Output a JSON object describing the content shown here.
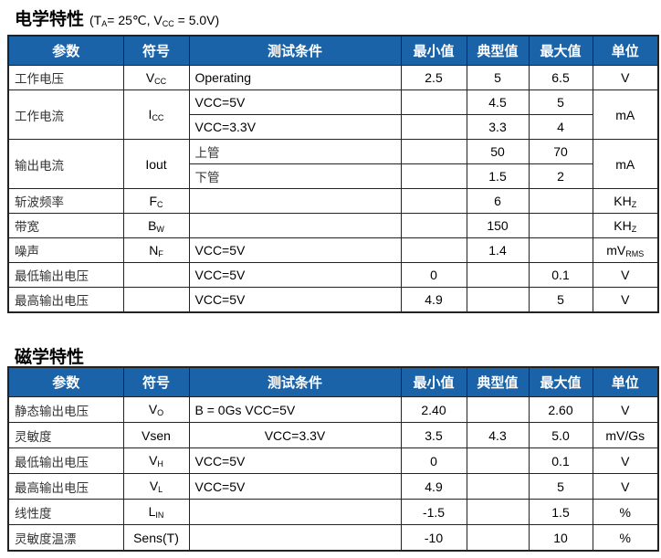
{
  "electrical": {
    "title": "电学特性",
    "condition": {
      "pre": "(T",
      "ta_sub": "A",
      "mid": "= 25℃, V",
      "vcc_sub": "CC",
      "post": " = 5.0V)"
    },
    "headers": [
      "参数",
      "符号",
      "测试条件",
      "最小值",
      "典型值",
      "最大值",
      "单位"
    ],
    "rows": [
      [
        {
          "t": "工作电压",
          "k": "l"
        },
        {
          "t": "V",
          "s": "CC"
        },
        {
          "t": "Operating",
          "k": "c"
        },
        {
          "t": "2.5"
        },
        {
          "t": "5"
        },
        {
          "t": "6.5"
        },
        {
          "t": "V"
        }
      ],
      [
        {
          "t": "工作电流",
          "k": "l",
          "rs": 2
        },
        {
          "t": "I",
          "s": "CC",
          "rs": 2
        },
        {
          "t": "VCC=5V",
          "k": "c"
        },
        {
          "t": ""
        },
        {
          "t": "4.5"
        },
        {
          "t": "5"
        },
        {
          "t": "mA",
          "rs": 2
        }
      ],
      [
        {
          "t": "VCC=3.3V",
          "k": "c"
        },
        {
          "t": ""
        },
        {
          "t": "3.3"
        },
        {
          "t": "4"
        }
      ],
      [
        {
          "t": "输出电流",
          "k": "l",
          "rs": 2
        },
        {
          "t": "Iout",
          "rs": 2
        },
        {
          "t": "上管",
          "k": "l"
        },
        {
          "t": ""
        },
        {
          "t": "50"
        },
        {
          "t": "70"
        },
        {
          "t": "mA",
          "rs": 2
        }
      ],
      [
        {
          "t": "下管",
          "k": "l"
        },
        {
          "t": ""
        },
        {
          "t": "1.5"
        },
        {
          "t": "2"
        }
      ],
      [
        {
          "t": "斩波频率",
          "k": "l"
        },
        {
          "t": "F",
          "s": "C"
        },
        {
          "t": ""
        },
        {
          "t": ""
        },
        {
          "t": "6"
        },
        {
          "t": ""
        },
        {
          "t": "KH",
          "s": "Z"
        }
      ],
      [
        {
          "t": "带宽",
          "k": "l"
        },
        {
          "t": "B",
          "s": "W"
        },
        {
          "t": ""
        },
        {
          "t": ""
        },
        {
          "t": "150"
        },
        {
          "t": ""
        },
        {
          "t": "KH",
          "s": "Z"
        }
      ],
      [
        {
          "t": "噪声",
          "k": "l"
        },
        {
          "t": "N",
          "s": "F"
        },
        {
          "t": "VCC=5V",
          "k": "c"
        },
        {
          "t": ""
        },
        {
          "t": "1.4"
        },
        {
          "t": ""
        },
        {
          "t": "mV",
          "s": "RMS"
        }
      ],
      [
        {
          "t": "最低输出电压",
          "k": "l"
        },
        {
          "t": ""
        },
        {
          "t": "VCC=5V",
          "k": "c"
        },
        {
          "t": "0"
        },
        {
          "t": ""
        },
        {
          "t": "0.1"
        },
        {
          "t": "V"
        }
      ],
      [
        {
          "t": "最高输出电压",
          "k": "l"
        },
        {
          "t": ""
        },
        {
          "t": "VCC=5V",
          "k": "c"
        },
        {
          "t": "4.9"
        },
        {
          "t": ""
        },
        {
          "t": "5"
        },
        {
          "t": "V"
        }
      ]
    ]
  },
  "magnetic": {
    "title": "磁学特性",
    "headers": [
      "参数",
      "符号",
      "测试条件",
      "最小值",
      "典型值",
      "最大值",
      "单位"
    ],
    "rows": [
      [
        {
          "t": "静态输出电压",
          "k": "l"
        },
        {
          "t": "V",
          "s": "O"
        },
        {
          "t": "B = 0Gs    VCC=5V",
          "k": "c"
        },
        {
          "t": "2.40"
        },
        {
          "t": ""
        },
        {
          "t": "2.60"
        },
        {
          "t": "V"
        }
      ],
      [
        {
          "t": "灵敏度",
          "k": "l"
        },
        {
          "t": "Vsen"
        },
        {
          "t": "VCC=3.3V",
          "k": "cc"
        },
        {
          "t": "3.5"
        },
        {
          "t": "4.3"
        },
        {
          "t": "5.0"
        },
        {
          "t": "mV/Gs"
        }
      ],
      [
        {
          "t": "最低输出电压",
          "k": "l"
        },
        {
          "t": "V",
          "s": "H"
        },
        {
          "t": "VCC=5V",
          "k": "c"
        },
        {
          "t": "0"
        },
        {
          "t": ""
        },
        {
          "t": "0.1"
        },
        {
          "t": "V"
        }
      ],
      [
        {
          "t": "最高输出电压",
          "k": "l"
        },
        {
          "t": "V",
          "s": "L"
        },
        {
          "t": "VCC=5V",
          "k": "c"
        },
        {
          "t": "4.9"
        },
        {
          "t": ""
        },
        {
          "t": "5"
        },
        {
          "t": "V"
        }
      ],
      [
        {
          "t": "线性度",
          "k": "l"
        },
        {
          "t": "L",
          "s": "IN"
        },
        {
          "t": ""
        },
        {
          "t": "-1.5"
        },
        {
          "t": ""
        },
        {
          "t": "1.5"
        },
        {
          "t": "%"
        }
      ],
      [
        {
          "t": "灵敏度温漂",
          "k": "l"
        },
        {
          "t": "Sens(T)"
        },
        {
          "t": ""
        },
        {
          "t": "-10"
        },
        {
          "t": ""
        },
        {
          "t": "10"
        },
        {
          "t": "%"
        }
      ]
    ]
  },
  "colors": {
    "header_bg": "#1b63a9",
    "header_text": "#ffffff"
  }
}
